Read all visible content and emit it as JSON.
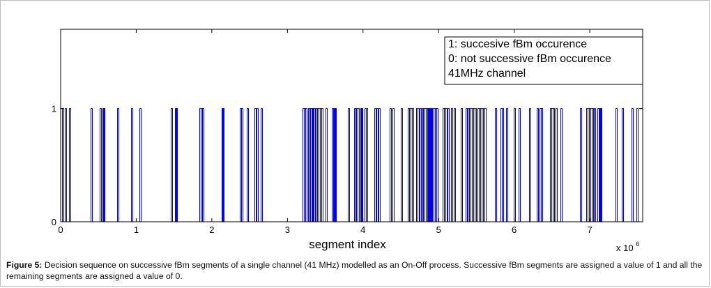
{
  "chart_data": {
    "type": "step",
    "title": "",
    "xlabel": "segment index",
    "x_multiplier_label": "x 10",
    "x_multiplier_exponent": "6",
    "ylabel": "",
    "xlim": [
      0,
      7.7
    ],
    "ylim": [
      0,
      1.7
    ],
    "x_ticks": [
      0,
      1,
      2,
      3,
      4,
      5,
      6,
      7
    ],
    "y_ticks": [
      0,
      1
    ],
    "series_color": "#0000ff",
    "annotation_lines": [
      "1: succesive fBm occurence",
      "0: not successive fBm occurence",
      "41MHz channel"
    ],
    "pulses_x_millions": [
      0.03,
      0.06,
      0.12,
      0.41,
      0.53,
      0.56,
      0.57,
      0.76,
      0.94,
      1.05,
      1.47,
      1.52,
      1.53,
      1.84,
      1.86,
      1.88,
      2.14,
      2.15,
      2.38,
      2.4,
      2.47,
      2.57,
      2.6,
      2.66,
      3.21,
      3.23,
      3.25,
      3.28,
      3.31,
      3.33,
      3.34,
      3.36,
      3.38,
      3.4,
      3.42,
      3.44,
      3.46,
      3.51,
      3.6,
      3.62,
      3.63,
      3.81,
      3.89,
      3.92,
      3.94,
      3.97,
      3.98,
      4.03,
      4.05,
      4.16,
      4.19,
      4.21,
      4.36,
      4.4,
      4.51,
      4.6,
      4.62,
      4.64,
      4.66,
      4.71,
      4.73,
      4.76,
      4.78,
      4.8,
      4.82,
      4.84,
      4.86,
      4.87,
      4.89,
      4.9,
      4.92,
      4.94,
      4.96,
      4.98,
      5.06,
      5.08,
      5.1,
      5.13,
      5.17,
      5.21,
      5.3,
      5.37,
      5.39,
      5.41,
      5.43,
      5.45,
      5.47,
      5.49,
      5.52,
      5.54,
      5.56,
      5.58,
      5.6,
      5.62,
      5.75,
      5.83,
      5.85,
      5.9,
      6.0,
      6.07,
      6.21,
      6.31,
      6.34,
      6.36,
      6.48,
      6.5,
      6.52,
      6.56,
      6.62,
      6.88,
      6.96,
      6.98,
      7.0,
      7.02,
      7.04,
      7.06,
      7.11,
      7.14,
      7.15,
      7.35,
      7.43,
      7.56,
      7.63
    ]
  },
  "caption": {
    "label": "Figure 5:",
    "text": " Decision sequence on successive fBm segments of a single channel (41 MHz) modelled as an On-Off process. Successive fBm segments are assigned a value of 1 and all the remaining segments are assigned a value of 0."
  }
}
